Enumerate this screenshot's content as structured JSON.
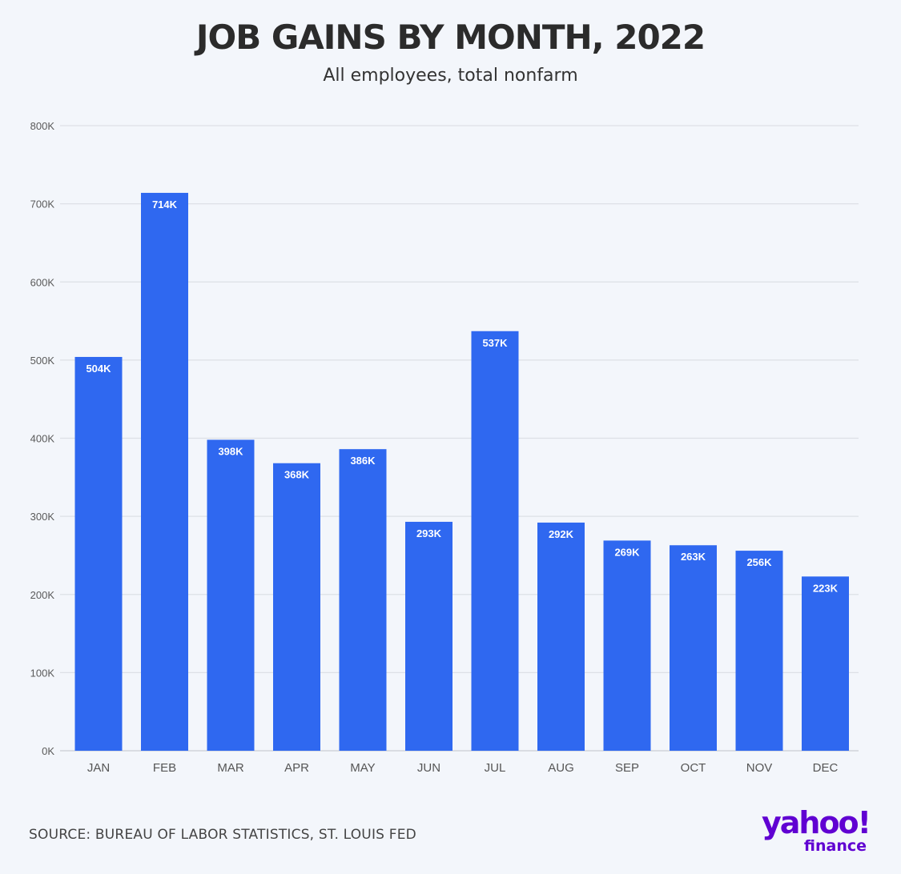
{
  "chart_data": {
    "type": "bar",
    "title": "JOB GAINS BY MONTH, 2022",
    "subtitle": "All employees, total nonfarm",
    "categories": [
      "JAN",
      "FEB",
      "MAR",
      "APR",
      "MAY",
      "JUN",
      "JUL",
      "AUG",
      "SEP",
      "OCT",
      "NOV",
      "DEC"
    ],
    "values": [
      504,
      714,
      398,
      368,
      386,
      293,
      537,
      292,
      269,
      263,
      256,
      223
    ],
    "value_labels": [
      "504K",
      "714K",
      "398K",
      "368K",
      "386K",
      "293K",
      "537K",
      "292K",
      "269K",
      "263K",
      "256K",
      "223K"
    ],
    "yticks": [
      0,
      100,
      200,
      300,
      400,
      500,
      600,
      700,
      800
    ],
    "ytick_labels": [
      "0K",
      "100K",
      "200K",
      "300K",
      "400K",
      "500K",
      "600K",
      "700K",
      "800K"
    ],
    "ylim": [
      0,
      800
    ],
    "units": "thousands",
    "xlabel": "",
    "ylabel": "",
    "grid": true,
    "bar_color": "#2f68f0"
  },
  "source": "SOURCE: BUREAU OF LABOR STATISTICS, ST. LOUIS FED",
  "logo": {
    "main": "yahoo!",
    "sub": "finance",
    "color": "#6001d2"
  }
}
